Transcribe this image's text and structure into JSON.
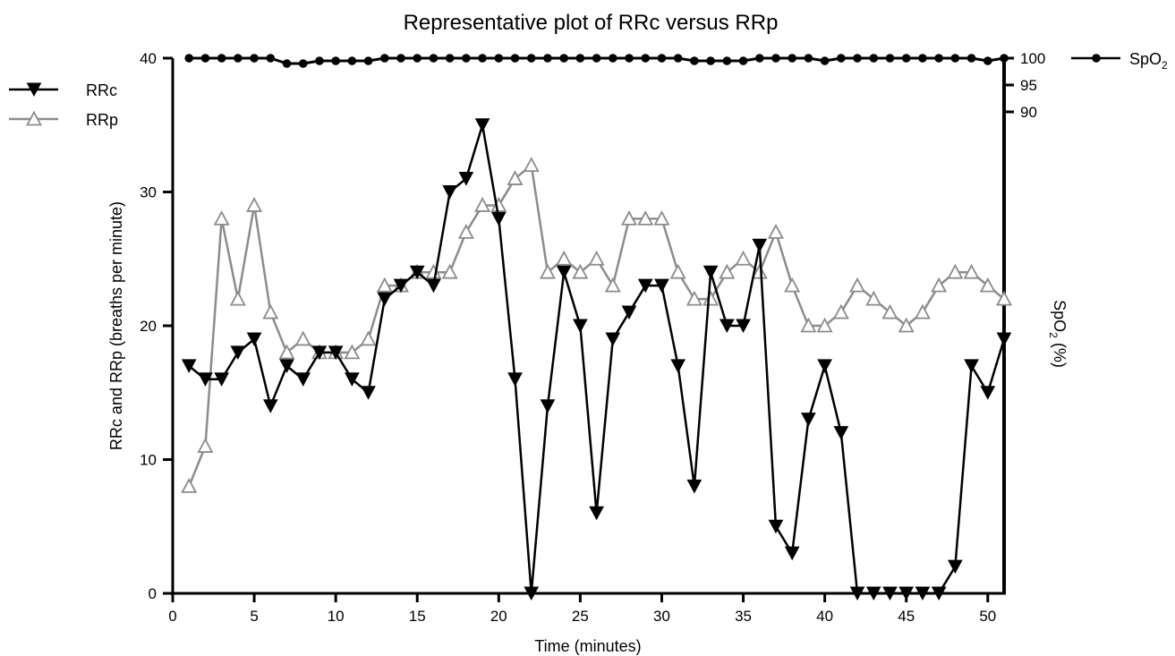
{
  "chart_data": {
    "type": "line",
    "title": "Representative plot of RRc versus RRp",
    "xlabel": "Time (minutes)",
    "ylabel": "RRc and RRp (breaths per minute)",
    "y2label": "SpO2 (%)",
    "y2label_parts": {
      "base": "SpO",
      "sub": "2",
      "rest": " (%)"
    },
    "xlim": [
      0,
      51
    ],
    "ylim": [
      0,
      40
    ],
    "y2lim": [
      80,
      100
    ],
    "x_ticks": [
      "0",
      "5",
      "10",
      "15",
      "20",
      "25",
      "30",
      "35",
      "40",
      "45",
      "50"
    ],
    "y_ticks": [
      "0",
      "10",
      "20",
      "30",
      "40"
    ],
    "y2_ticks": [
      "90",
      "95",
      "100"
    ],
    "x": [
      1,
      2,
      3,
      4,
      5,
      6,
      7,
      8,
      9,
      10,
      11,
      12,
      13,
      14,
      15,
      16,
      17,
      18,
      19,
      20,
      21,
      22,
      23,
      24,
      25,
      26,
      27,
      28,
      29,
      30,
      31,
      32,
      33,
      34,
      35,
      36,
      37,
      38,
      39,
      40,
      41,
      42,
      43,
      44,
      45,
      46,
      47,
      48,
      49,
      50,
      51
    ],
    "grid": false,
    "legend_position": "left",
    "series": [
      {
        "name": "RRc",
        "axis": "left",
        "color": "#000000",
        "marker": "triangle-down",
        "values": [
          17,
          16,
          16,
          18,
          19,
          14,
          17,
          16,
          18,
          18,
          16,
          15,
          22,
          23,
          24,
          23,
          30,
          31,
          35,
          28,
          16,
          0,
          14,
          24,
          20,
          6,
          19,
          21,
          23,
          23,
          17,
          8,
          24,
          20,
          20,
          26,
          5,
          3,
          13,
          17,
          12,
          0,
          0,
          0,
          0,
          0,
          0,
          2,
          17,
          15,
          19
        ]
      },
      {
        "name": "RRp",
        "axis": "left",
        "color": "#8c8c8c",
        "marker": "triangle-up-open",
        "values": [
          8,
          11,
          28,
          22,
          29,
          21,
          18,
          19,
          18,
          18,
          18,
          19,
          23,
          23,
          24,
          24,
          24,
          27,
          29,
          29,
          31,
          32,
          24,
          25,
          24,
          25,
          23,
          28,
          28,
          28,
          24,
          22,
          22,
          24,
          25,
          24,
          27,
          23,
          20,
          20,
          21,
          23,
          22,
          21,
          20,
          21,
          23,
          24,
          24,
          23,
          22
        ]
      },
      {
        "name": "SpO2",
        "legend_parts": {
          "base": "SpO",
          "sub": "2"
        },
        "axis": "right",
        "color": "#000000",
        "marker": "circle",
        "values": [
          100,
          100,
          100,
          100,
          100,
          100,
          99,
          99,
          99.5,
          99.5,
          99.5,
          99.5,
          100,
          100,
          100,
          100,
          100,
          100,
          100,
          100,
          100,
          100,
          100,
          100,
          100,
          100,
          100,
          100,
          100,
          100,
          100,
          99.5,
          99.5,
          99.5,
          99.5,
          100,
          100,
          100,
          100,
          99.5,
          100,
          100,
          100,
          100,
          100,
          100,
          100,
          100,
          100,
          99.5,
          100
        ]
      }
    ]
  }
}
